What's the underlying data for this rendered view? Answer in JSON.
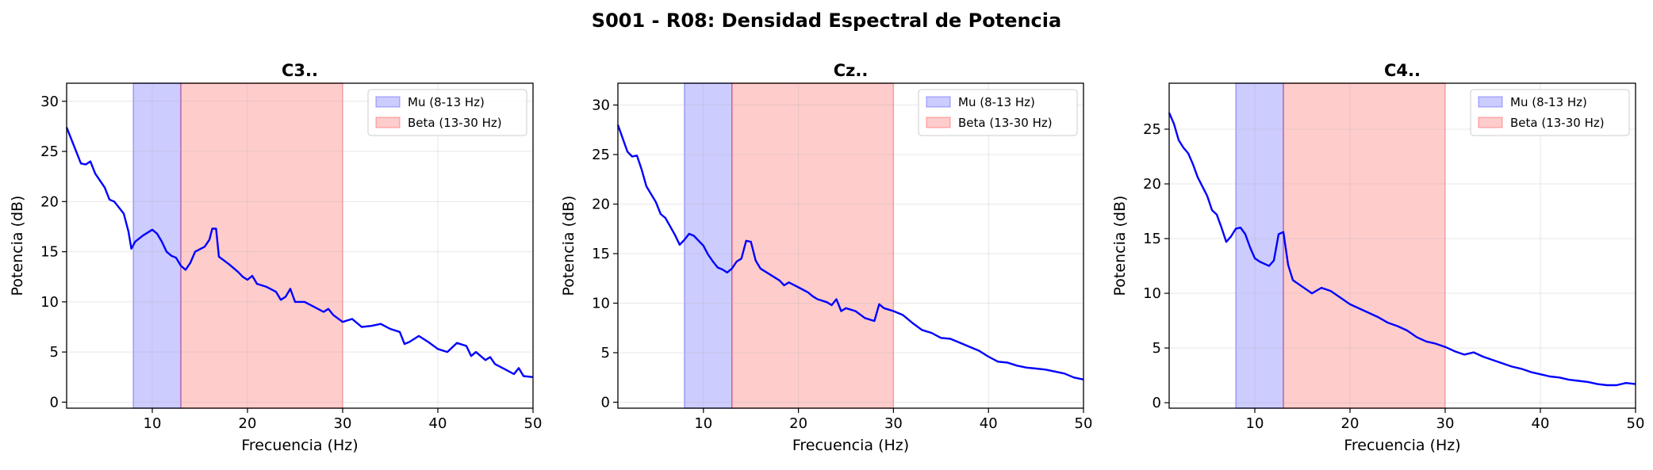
{
  "figure": {
    "suptitle": "S001 - R08: Densidad Espectral de Potencia"
  },
  "colors": {
    "line": "#0000ff",
    "mu_band": "#0000ff",
    "beta_band": "#ff0000",
    "grid": "#dddddd",
    "axis": "#000000"
  },
  "chart_data": [
    {
      "type": "line",
      "title": "C3..",
      "xlabel": "Frecuencia (Hz)",
      "ylabel": "Potencia (dB)",
      "xlim": [
        1,
        50
      ],
      "ylim": [
        -0.6,
        31.8
      ],
      "xticks": [
        10,
        20,
        30,
        40,
        50
      ],
      "yticks": [
        0,
        5,
        10,
        15,
        20,
        25,
        30
      ],
      "grid": true,
      "legend_position": "top-right",
      "bands": [
        {
          "label": "Mu (8-13 Hz)",
          "from": 8,
          "to": 13,
          "color": "#0000ff"
        },
        {
          "label": "Beta (13-30 Hz)",
          "from": 13,
          "to": 30,
          "color": "#ff0000"
        }
      ],
      "series": [
        {
          "color": "#0000ff",
          "points": [
            [
              1,
              27.4
            ],
            [
              2,
              25.0
            ],
            [
              2.5,
              23.8
            ],
            [
              3,
              23.7
            ],
            [
              3.5,
              24.0
            ],
            [
              4,
              22.8
            ],
            [
              5,
              21.4
            ],
            [
              5.5,
              20.2
            ],
            [
              6,
              20.0
            ],
            [
              7,
              18.8
            ],
            [
              7.5,
              17.0
            ],
            [
              7.8,
              15.3
            ],
            [
              8.2,
              16.0
            ],
            [
              9,
              16.6
            ],
            [
              10,
              17.2
            ],
            [
              10.5,
              16.8
            ],
            [
              11,
              16.0
            ],
            [
              11.5,
              15.0
            ],
            [
              12,
              14.6
            ],
            [
              12.5,
              14.4
            ],
            [
              13,
              13.6
            ],
            [
              13.5,
              13.2
            ],
            [
              14,
              13.9
            ],
            [
              14.5,
              15.0
            ],
            [
              15.5,
              15.5
            ],
            [
              16,
              16.2
            ],
            [
              16.3,
              17.3
            ],
            [
              16.7,
              17.3
            ],
            [
              17,
              14.5
            ],
            [
              18,
              13.8
            ],
            [
              19,
              13.0
            ],
            [
              19.5,
              12.5
            ],
            [
              20,
              12.2
            ],
            [
              20.5,
              12.6
            ],
            [
              21,
              11.8
            ],
            [
              22,
              11.5
            ],
            [
              23,
              11.0
            ],
            [
              23.5,
              10.2
            ],
            [
              24,
              10.5
            ],
            [
              24.5,
              11.3
            ],
            [
              25,
              10.0
            ],
            [
              26,
              10.0
            ],
            [
              27,
              9.5
            ],
            [
              28,
              9.0
            ],
            [
              28.5,
              9.3
            ],
            [
              29,
              8.7
            ],
            [
              30,
              8.0
            ],
            [
              31,
              8.3
            ],
            [
              32,
              7.5
            ],
            [
              33,
              7.6
            ],
            [
              34,
              7.8
            ],
            [
              35,
              7.3
            ],
            [
              36,
              7.0
            ],
            [
              36.5,
              5.8
            ],
            [
              37,
              6.0
            ],
            [
              38,
              6.6
            ],
            [
              39,
              6.0
            ],
            [
              40,
              5.3
            ],
            [
              41,
              5.0
            ],
            [
              42,
              5.9
            ],
            [
              43,
              5.6
            ],
            [
              43.5,
              4.6
            ],
            [
              44,
              5.0
            ],
            [
              45,
              4.2
            ],
            [
              45.5,
              4.5
            ],
            [
              46,
              3.8
            ],
            [
              47,
              3.3
            ],
            [
              48,
              2.8
            ],
            [
              48.5,
              3.4
            ],
            [
              49,
              2.6
            ],
            [
              50,
              2.5
            ]
          ]
        }
      ]
    },
    {
      "type": "line",
      "title": "Cz..",
      "xlabel": "Frecuencia (Hz)",
      "ylabel": "Potencia (dB)",
      "xlim": [
        1,
        50
      ],
      "ylim": [
        -0.6,
        32.2
      ],
      "xticks": [
        10,
        20,
        30,
        40,
        50
      ],
      "yticks": [
        0,
        5,
        10,
        15,
        20,
        25,
        30
      ],
      "grid": true,
      "legend_position": "top-right",
      "bands": [
        {
          "label": "Mu (8-13 Hz)",
          "from": 8,
          "to": 13,
          "color": "#0000ff"
        },
        {
          "label": "Beta (13-30 Hz)",
          "from": 13,
          "to": 30,
          "color": "#ff0000"
        }
      ],
      "series": [
        {
          "color": "#0000ff",
          "points": [
            [
              1,
              28.0
            ],
            [
              2,
              25.3
            ],
            [
              2.5,
              24.8
            ],
            [
              3,
              24.9
            ],
            [
              3.5,
              23.5
            ],
            [
              4,
              21.8
            ],
            [
              5,
              20.2
            ],
            [
              5.5,
              19.0
            ],
            [
              6,
              18.6
            ],
            [
              7,
              16.9
            ],
            [
              7.5,
              15.9
            ],
            [
              8,
              16.4
            ],
            [
              8.5,
              17.0
            ],
            [
              9,
              16.8
            ],
            [
              10,
              15.8
            ],
            [
              10.5,
              14.9
            ],
            [
              11,
              14.2
            ],
            [
              11.5,
              13.6
            ],
            [
              12,
              13.4
            ],
            [
              12.5,
              13.1
            ],
            [
              13,
              13.5
            ],
            [
              13.5,
              14.2
            ],
            [
              14,
              14.5
            ],
            [
              14.5,
              16.3
            ],
            [
              15,
              16.2
            ],
            [
              15.5,
              14.3
            ],
            [
              16,
              13.5
            ],
            [
              17,
              12.9
            ],
            [
              18,
              12.3
            ],
            [
              18.5,
              11.8
            ],
            [
              19,
              12.1
            ],
            [
              20,
              11.6
            ],
            [
              21,
              11.1
            ],
            [
              21.5,
              10.7
            ],
            [
              22,
              10.4
            ],
            [
              23,
              10.1
            ],
            [
              23.5,
              9.8
            ],
            [
              24,
              10.4
            ],
            [
              24.5,
              9.2
            ],
            [
              25,
              9.5
            ],
            [
              26,
              9.2
            ],
            [
              27,
              8.5
            ],
            [
              28,
              8.2
            ],
            [
              28.5,
              9.9
            ],
            [
              29,
              9.5
            ],
            [
              30,
              9.2
            ],
            [
              31,
              8.8
            ],
            [
              32,
              8.0
            ],
            [
              33,
              7.3
            ],
            [
              34,
              7.0
            ],
            [
              35,
              6.5
            ],
            [
              36,
              6.4
            ],
            [
              37,
              6.0
            ],
            [
              38,
              5.6
            ],
            [
              39,
              5.2
            ],
            [
              40,
              4.6
            ],
            [
              41,
              4.1
            ],
            [
              42,
              4.0
            ],
            [
              43,
              3.7
            ],
            [
              44,
              3.5
            ],
            [
              45,
              3.4
            ],
            [
              46,
              3.3
            ],
            [
              47,
              3.1
            ],
            [
              48,
              2.9
            ],
            [
              49,
              2.5
            ],
            [
              50,
              2.3
            ]
          ]
        }
      ]
    },
    {
      "type": "line",
      "title": "C4..",
      "xlabel": "Frecuencia (Hz)",
      "ylabel": "Potencia (dB)",
      "xlim": [
        1,
        50
      ],
      "ylim": [
        -0.5,
        29.2
      ],
      "xticks": [
        10,
        20,
        30,
        40,
        50
      ],
      "yticks": [
        0,
        5,
        10,
        15,
        20,
        25
      ],
      "grid": true,
      "legend_position": "top-right",
      "bands": [
        {
          "label": "Mu (8-13 Hz)",
          "from": 8,
          "to": 13,
          "color": "#0000ff"
        },
        {
          "label": "Beta (13-30 Hz)",
          "from": 13,
          "to": 30,
          "color": "#ff0000"
        }
      ],
      "series": [
        {
          "color": "#0000ff",
          "points": [
            [
              1,
              26.5
            ],
            [
              1.5,
              25.5
            ],
            [
              2,
              24.0
            ],
            [
              2.5,
              23.3
            ],
            [
              3,
              22.8
            ],
            [
              3.5,
              21.8
            ],
            [
              4,
              20.6
            ],
            [
              5,
              18.9
            ],
            [
              5.5,
              17.6
            ],
            [
              6,
              17.2
            ],
            [
              6.5,
              16.0
            ],
            [
              7,
              14.7
            ],
            [
              7.5,
              15.2
            ],
            [
              8,
              15.9
            ],
            [
              8.5,
              16.0
            ],
            [
              9,
              15.4
            ],
            [
              9.5,
              14.2
            ],
            [
              10,
              13.2
            ],
            [
              10.5,
              12.9
            ],
            [
              11,
              12.7
            ],
            [
              11.5,
              12.5
            ],
            [
              12,
              13.0
            ],
            [
              12.5,
              15.4
            ],
            [
              13,
              15.6
            ],
            [
              13.5,
              12.6
            ],
            [
              14,
              11.2
            ],
            [
              15,
              10.6
            ],
            [
              16,
              10.0
            ],
            [
              17,
              10.5
            ],
            [
              18,
              10.2
            ],
            [
              19,
              9.6
            ],
            [
              20,
              9.0
            ],
            [
              21,
              8.6
            ],
            [
              22,
              8.2
            ],
            [
              23,
              7.8
            ],
            [
              24,
              7.3
            ],
            [
              25,
              7.0
            ],
            [
              26,
              6.6
            ],
            [
              27,
              6.0
            ],
            [
              28,
              5.6
            ],
            [
              29,
              5.4
            ],
            [
              30,
              5.1
            ],
            [
              31,
              4.7
            ],
            [
              32,
              4.4
            ],
            [
              33,
              4.6
            ],
            [
              34,
              4.2
            ],
            [
              35,
              3.9
            ],
            [
              36,
              3.6
            ],
            [
              37,
              3.3
            ],
            [
              38,
              3.1
            ],
            [
              39,
              2.8
            ],
            [
              40,
              2.6
            ],
            [
              41,
              2.4
            ],
            [
              42,
              2.3
            ],
            [
              43,
              2.1
            ],
            [
              44,
              2.0
            ],
            [
              45,
              1.9
            ],
            [
              46,
              1.7
            ],
            [
              47,
              1.6
            ],
            [
              48,
              1.6
            ],
            [
              49,
              1.8
            ],
            [
              50,
              1.7
            ]
          ]
        }
      ]
    }
  ]
}
